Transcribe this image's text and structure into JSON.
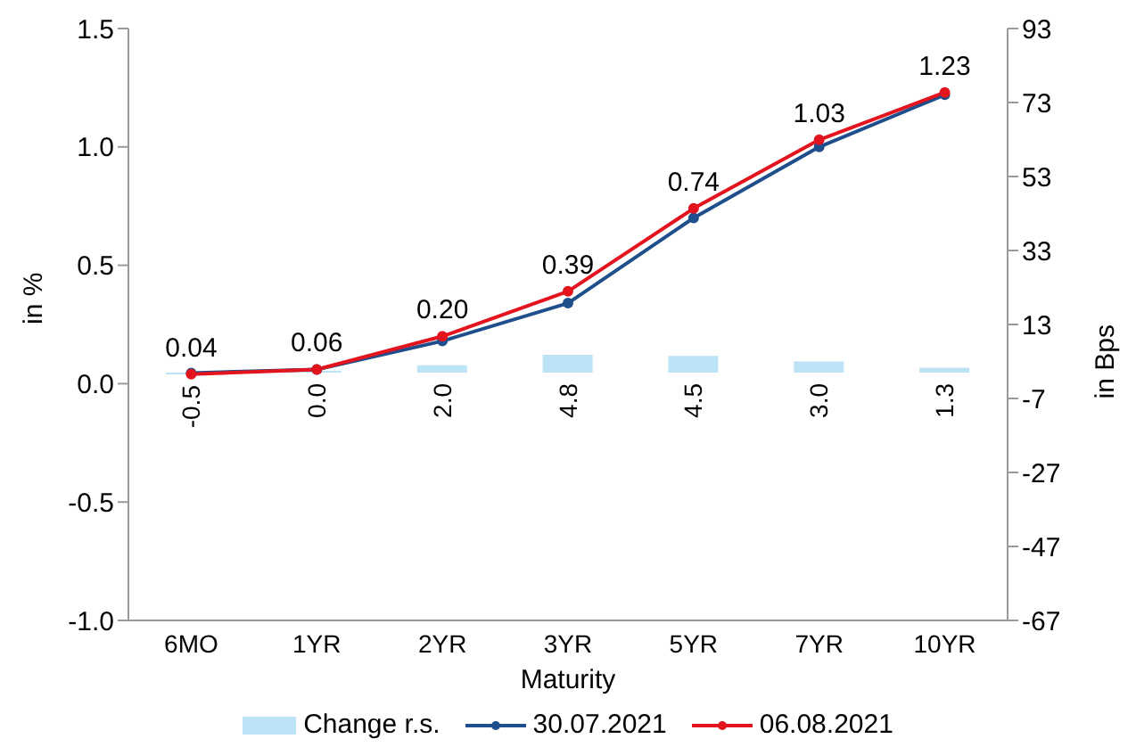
{
  "chart_data": {
    "type": "line",
    "xlabel": "Maturity",
    "ylabel": "in %",
    "y2label": "in Bps",
    "categories": [
      "6MO",
      "1YR",
      "2YR",
      "3YR",
      "5YR",
      "7YR",
      "10YR"
    ],
    "series": [
      {
        "name": "Change r.s.",
        "type": "bar",
        "axis": "y2",
        "color": "#bde3f7",
        "values": [
          -0.5,
          0.0,
          2.0,
          4.8,
          4.5,
          3.0,
          1.3
        ],
        "value_labels": [
          "-0.5",
          "0.0",
          "2.0",
          "4.8",
          "4.5",
          "3.0",
          "1.3"
        ]
      },
      {
        "name": "30.07.2021",
        "color": "#1f4e8c",
        "values": [
          0.045,
          0.06,
          0.18,
          0.34,
          0.7,
          1.0,
          1.22
        ]
      },
      {
        "name": "06.08.2021",
        "color": "#e3141d",
        "values": [
          0.04,
          0.06,
          0.2,
          0.39,
          0.74,
          1.03,
          1.23
        ],
        "value_labels": [
          "0.04",
          "0.06",
          "0.20",
          "0.39",
          "0.74",
          "1.03",
          "1.23"
        ]
      }
    ],
    "ylim": [
      -1.0,
      1.5
    ],
    "yticks": [
      {
        "value": -1,
        "label": "-1.0"
      },
      {
        "value": -0.5,
        "label": "-0.5"
      },
      {
        "value": 0,
        "label": "0.0"
      },
      {
        "value": 0.5,
        "label": "0.5"
      },
      {
        "value": 1,
        "label": "1.0"
      },
      {
        "value": 1.5,
        "label": "1.5"
      }
    ],
    "y2lim": [
      -67,
      93
    ],
    "y2ticks": [
      -67,
      -47,
      -27,
      -7,
      13,
      33,
      53,
      73,
      93
    ],
    "grid": false,
    "legend": "bottom",
    "marker": "circle",
    "line_style": "solid"
  }
}
